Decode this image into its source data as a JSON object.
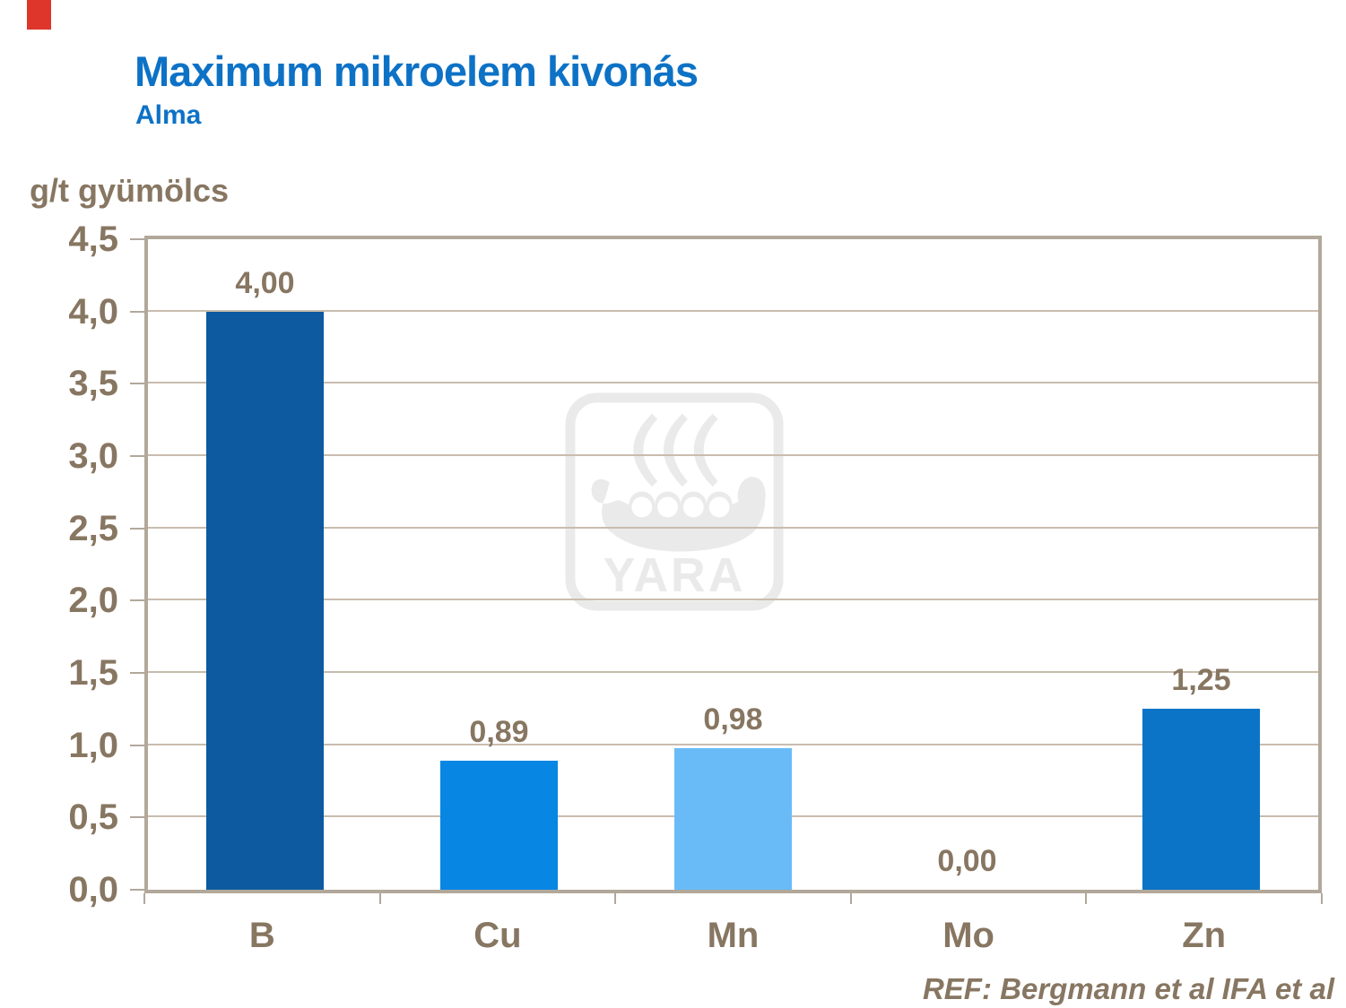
{
  "slide": {
    "title": "Maximum mikroelem kivonás",
    "subtitle": "Alma",
    "unit_label": "g/t gyümölcs",
    "footer_ref": "REF: Bergmann et al IFA et al",
    "watermark_text": "YARA"
  },
  "colors": {
    "title_blue": "#0d72c6",
    "text_brown": "#877661",
    "plot_border": "#b2a89a",
    "gridline": "#c9bcae",
    "watermark_gray": "#eaeaea",
    "corner_red": "#df362b"
  },
  "chart_data": {
    "type": "bar",
    "title": "Maximum mikroelem kivonás",
    "subtitle": "Alma",
    "ylabel": "g/t gyümölcs",
    "categories": [
      "B",
      "Cu",
      "Mn",
      "Mo",
      "Zn"
    ],
    "values": [
      4.0,
      0.89,
      0.98,
      0.0,
      1.25
    ],
    "value_labels": [
      "4,00",
      "0,89",
      "0,98",
      "0,00",
      "1,25"
    ],
    "bar_colors": [
      "#0d5aa0",
      "#0786e4",
      "#69bbf8",
      "#0786e4",
      "#0b74c6"
    ],
    "ylim": [
      0,
      4.5
    ],
    "ytick_step": 0.5,
    "ytick_labels": [
      "0,0",
      "0,5",
      "1,0",
      "1,5",
      "2,0",
      "2,5",
      "3,0",
      "3,5",
      "4,0",
      "4,5"
    ],
    "grid": true,
    "legend": false,
    "annotation": "REF: Bergmann et al IFA et al"
  }
}
